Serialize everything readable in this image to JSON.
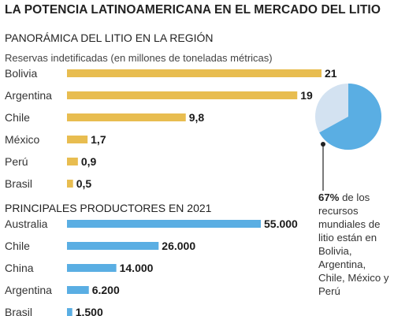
{
  "title": "LA POTENCIA LATINOAMERICANA EN EL MERCADO DEL LITIO",
  "section1_title": "PANORÁMICA DEL LITIO EN LA REGIÓN",
  "section1_subtitle": "Reservas indetificadas (en millones de toneladas métricas)",
  "section2_title": "PRINCIPALES PRODUCTORES EN 2021",
  "note_pct": "67%",
  "note_text": " de los recursos mundiales de litio están en Bolivia, Argentina, Chile, México y Perú",
  "colors": {
    "reserves_bar": "#e8bd50",
    "production_bar": "#5aaee3",
    "pie_main": "#5aaee3",
    "pie_rest": "#d3e2f1",
    "leader_line": "#222222"
  },
  "chart_data": [
    {
      "type": "bar",
      "orientation": "horizontal",
      "categories": [
        "Bolivia",
        "Argentina",
        "Chile",
        "México",
        "Perú",
        "Brasil"
      ],
      "values": [
        21,
        19,
        9.8,
        1.7,
        0.9,
        0.5
      ],
      "value_labels": [
        "21",
        "19",
        "9,8",
        "1,7",
        "0,9",
        "0,5"
      ]
    },
    {
      "type": "bar",
      "orientation": "horizontal",
      "categories": [
        "Australia",
        "Chile",
        "China",
        "Argentina",
        "Brasil"
      ],
      "values": [
        55000,
        26000,
        14000,
        6200,
        1500
      ],
      "value_labels": [
        "55.000",
        "26.000",
        "14.000",
        "6.200",
        "1.500"
      ]
    },
    {
      "type": "pie",
      "labels": [
        "Bolivia, Argentina, Chile, México y Perú",
        "Resto"
      ],
      "values": [
        67,
        33
      ]
    }
  ]
}
